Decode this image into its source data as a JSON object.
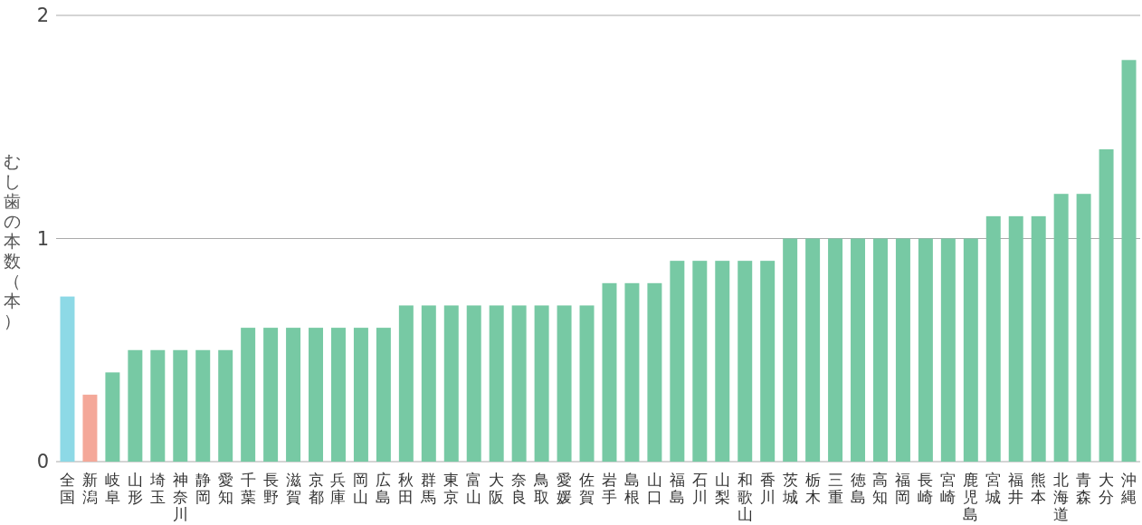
{
  "chart_data": {
    "type": "bar",
    "ylabel": "むし歯の本数（本）",
    "categories": [
      "全国",
      "新潟",
      "岐阜",
      "山形",
      "埼玉",
      "神奈川",
      "静岡",
      "愛知",
      "千葉",
      "長野",
      "滋賀",
      "京都",
      "兵庫",
      "岡山",
      "広島",
      "秋田",
      "群馬",
      "東京",
      "富山",
      "大阪",
      "奈良",
      "鳥取",
      "愛媛",
      "佐賀",
      "岩手",
      "島根",
      "山口",
      "福島",
      "石川",
      "山梨",
      "和歌山",
      "香川",
      "茨城",
      "栃木",
      "三重",
      "徳島",
      "高知",
      "福岡",
      "長崎",
      "宮崎",
      "鹿児島",
      "宮城",
      "福井",
      "熊本",
      "北海道",
      "青森",
      "大分",
      "沖縄"
    ],
    "values": [
      0.74,
      0.3,
      0.4,
      0.5,
      0.5,
      0.5,
      0.5,
      0.5,
      0.6,
      0.6,
      0.6,
      0.6,
      0.6,
      0.6,
      0.6,
      0.7,
      0.7,
      0.7,
      0.7,
      0.7,
      0.7,
      0.7,
      0.7,
      0.7,
      0.8,
      0.8,
      0.8,
      0.9,
      0.9,
      0.9,
      0.9,
      0.9,
      1.0,
      1.0,
      1.0,
      1.0,
      1.0,
      1.0,
      1.0,
      1.0,
      1.0,
      1.1,
      1.1,
      1.1,
      1.2,
      1.2,
      1.4,
      1.8
    ],
    "colors": [
      "#8dd9e6",
      "#f4a899",
      "#77c9a4",
      "#77c9a4",
      "#77c9a4",
      "#77c9a4",
      "#77c9a4",
      "#77c9a4",
      "#77c9a4",
      "#77c9a4",
      "#77c9a4",
      "#77c9a4",
      "#77c9a4",
      "#77c9a4",
      "#77c9a4",
      "#77c9a4",
      "#77c9a4",
      "#77c9a4",
      "#77c9a4",
      "#77c9a4",
      "#77c9a4",
      "#77c9a4",
      "#77c9a4",
      "#77c9a4",
      "#77c9a4",
      "#77c9a4",
      "#77c9a4",
      "#77c9a4",
      "#77c9a4",
      "#77c9a4",
      "#77c9a4",
      "#77c9a4",
      "#77c9a4",
      "#77c9a4",
      "#77c9a4",
      "#77c9a4",
      "#77c9a4",
      "#77c9a4",
      "#77c9a4",
      "#77c9a4",
      "#77c9a4",
      "#77c9a4",
      "#77c9a4",
      "#77c9a4",
      "#77c9a4",
      "#77c9a4",
      "#77c9a4",
      "#77c9a4"
    ],
    "ylim": [
      0,
      2
    ],
    "yticks": [
      0,
      1,
      2
    ],
    "grid": "y"
  }
}
